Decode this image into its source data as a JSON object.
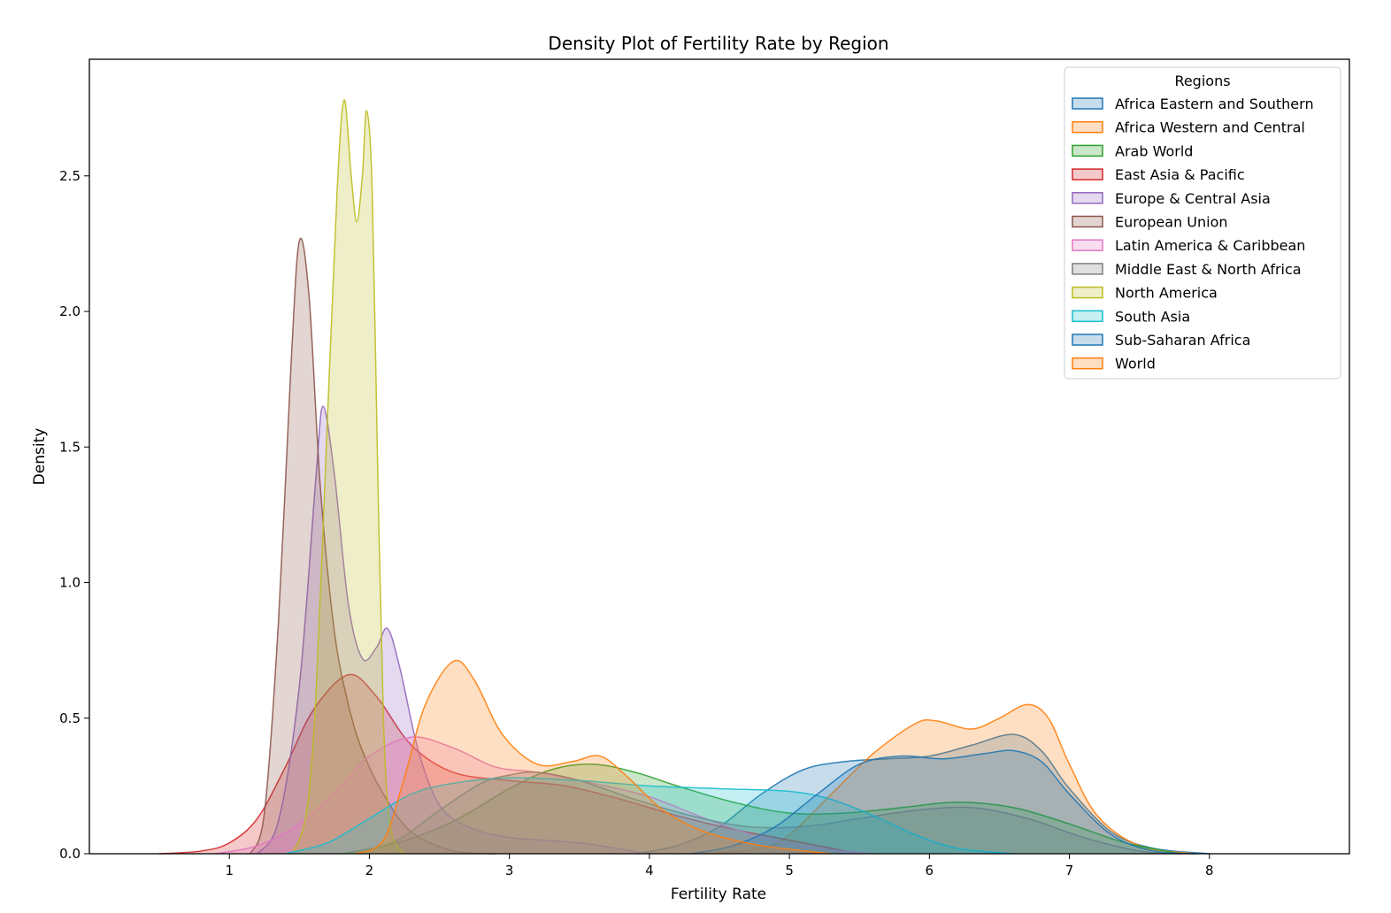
{
  "chart_data": {
    "type": "area",
    "subtype": "kde-density",
    "title": "Density Plot of Fertility Rate by Region",
    "xlabel": "Fertility Rate",
    "ylabel": "Density",
    "xlim": [
      0.0,
      9.0
    ],
    "ylim": [
      0.0,
      2.93
    ],
    "xticks": [
      1,
      2,
      3,
      4,
      5,
      6,
      7,
      8
    ],
    "yticks": [
      0.0,
      0.5,
      1.0,
      1.5,
      2.0,
      2.5
    ],
    "xtick_labels": [
      "1",
      "2",
      "3",
      "4",
      "5",
      "6",
      "7",
      "8"
    ],
    "ytick_labels": [
      "0.0",
      "0.5",
      "1.0",
      "1.5",
      "2.0",
      "2.5"
    ],
    "grid": false,
    "legend": {
      "title": "Regions",
      "position": "top-right"
    },
    "series": [
      {
        "name": "Africa Eastern and Southern",
        "color": "#1f77b4",
        "points": [
          [
            3.9,
            0
          ],
          [
            4.2,
            0.03
          ],
          [
            4.5,
            0.1
          ],
          [
            4.8,
            0.22
          ],
          [
            5.1,
            0.31
          ],
          [
            5.4,
            0.34
          ],
          [
            5.7,
            0.35
          ],
          [
            6.0,
            0.36
          ],
          [
            6.3,
            0.4
          ],
          [
            6.6,
            0.44
          ],
          [
            6.8,
            0.38
          ],
          [
            7.0,
            0.24
          ],
          [
            7.3,
            0.08
          ],
          [
            7.6,
            0.02
          ],
          [
            8.0,
            0
          ]
        ]
      },
      {
        "name": "Africa Western and Central",
        "color": "#ff7f0e",
        "points": [
          [
            4.4,
            0
          ],
          [
            4.8,
            0.02
          ],
          [
            5.0,
            0.07
          ],
          [
            5.3,
            0.22
          ],
          [
            5.6,
            0.37
          ],
          [
            5.9,
            0.48
          ],
          [
            6.05,
            0.49
          ],
          [
            6.3,
            0.46
          ],
          [
            6.5,
            0.5
          ],
          [
            6.7,
            0.55
          ],
          [
            6.85,
            0.5
          ],
          [
            7.0,
            0.33
          ],
          [
            7.2,
            0.14
          ],
          [
            7.5,
            0.03
          ],
          [
            7.9,
            0
          ]
        ]
      },
      {
        "name": "Arab World",
        "color": "#2ca02c",
        "points": [
          [
            1.8,
            0
          ],
          [
            2.2,
            0.04
          ],
          [
            2.6,
            0.12
          ],
          [
            3.0,
            0.24
          ],
          [
            3.3,
            0.31
          ],
          [
            3.6,
            0.33
          ],
          [
            3.9,
            0.3
          ],
          [
            4.2,
            0.25
          ],
          [
            4.6,
            0.19
          ],
          [
            5.0,
            0.15
          ],
          [
            5.4,
            0.15
          ],
          [
            5.8,
            0.17
          ],
          [
            6.2,
            0.19
          ],
          [
            6.6,
            0.17
          ],
          [
            7.0,
            0.11
          ],
          [
            7.4,
            0.04
          ],
          [
            7.8,
            0
          ]
        ]
      },
      {
        "name": "East Asia & Pacific",
        "color": "#d62728",
        "points": [
          [
            0.5,
            0
          ],
          [
            0.8,
            0.01
          ],
          [
            1.0,
            0.04
          ],
          [
            1.2,
            0.13
          ],
          [
            1.4,
            0.32
          ],
          [
            1.6,
            0.53
          ],
          [
            1.85,
            0.66
          ],
          [
            2.05,
            0.58
          ],
          [
            2.3,
            0.4
          ],
          [
            2.6,
            0.3
          ],
          [
            3.0,
            0.27
          ],
          [
            3.4,
            0.25
          ],
          [
            3.8,
            0.2
          ],
          [
            4.2,
            0.14
          ],
          [
            4.6,
            0.09
          ],
          [
            5.0,
            0.05
          ],
          [
            5.5,
            0
          ]
        ]
      },
      {
        "name": "Europe & Central Asia",
        "color": "#9467bd",
        "points": [
          [
            1.2,
            0
          ],
          [
            1.35,
            0.12
          ],
          [
            1.5,
            0.62
          ],
          [
            1.62,
            1.4
          ],
          [
            1.67,
            1.65
          ],
          [
            1.75,
            1.4
          ],
          [
            1.85,
            0.92
          ],
          [
            1.95,
            0.72
          ],
          [
            2.05,
            0.76
          ],
          [
            2.13,
            0.83
          ],
          [
            2.22,
            0.68
          ],
          [
            2.35,
            0.38
          ],
          [
            2.5,
            0.18
          ],
          [
            2.7,
            0.1
          ],
          [
            3.0,
            0.06
          ],
          [
            3.5,
            0.04
          ],
          [
            4.0,
            0
          ]
        ]
      },
      {
        "name": "European Union",
        "color": "#8c564b",
        "points": [
          [
            1.15,
            0
          ],
          [
            1.25,
            0.15
          ],
          [
            1.35,
            0.85
          ],
          [
            1.44,
            1.8
          ],
          [
            1.5,
            2.26
          ],
          [
            1.57,
            2.05
          ],
          [
            1.65,
            1.35
          ],
          [
            1.75,
            0.82
          ],
          [
            1.85,
            0.55
          ],
          [
            1.95,
            0.38
          ],
          [
            2.1,
            0.22
          ],
          [
            2.3,
            0.08
          ],
          [
            2.6,
            0.01
          ],
          [
            2.9,
            0
          ]
        ]
      },
      {
        "name": "Latin America & Caribbean",
        "color": "#e377c2",
        "points": [
          [
            0.9,
            0
          ],
          [
            1.2,
            0.03
          ],
          [
            1.5,
            0.11
          ],
          [
            1.8,
            0.25
          ],
          [
            2.0,
            0.36
          ],
          [
            2.3,
            0.43
          ],
          [
            2.6,
            0.39
          ],
          [
            2.9,
            0.32
          ],
          [
            3.2,
            0.3
          ],
          [
            3.6,
            0.26
          ],
          [
            4.0,
            0.21
          ],
          [
            4.4,
            0.13
          ],
          [
            4.8,
            0.06
          ],
          [
            5.2,
            0.02
          ],
          [
            5.6,
            0
          ]
        ]
      },
      {
        "name": "Middle East & North Africa",
        "color": "#7f7f7f",
        "points": [
          [
            1.9,
            0
          ],
          [
            2.2,
            0.05
          ],
          [
            2.5,
            0.16
          ],
          [
            2.8,
            0.26
          ],
          [
            3.0,
            0.29
          ],
          [
            3.2,
            0.3
          ],
          [
            3.5,
            0.27
          ],
          [
            3.9,
            0.2
          ],
          [
            4.3,
            0.14
          ],
          [
            4.7,
            0.1
          ],
          [
            5.1,
            0.1
          ],
          [
            5.5,
            0.13
          ],
          [
            5.9,
            0.16
          ],
          [
            6.3,
            0.17
          ],
          [
            6.7,
            0.13
          ],
          [
            7.1,
            0.06
          ],
          [
            7.5,
            0.01
          ],
          [
            7.8,
            0
          ]
        ]
      },
      {
        "name": "North America",
        "color": "#bcbd22",
        "points": [
          [
            1.45,
            0
          ],
          [
            1.55,
            0.15
          ],
          [
            1.62,
            0.6
          ],
          [
            1.7,
            1.6
          ],
          [
            1.77,
            2.45
          ],
          [
            1.82,
            2.78
          ],
          [
            1.87,
            2.5
          ],
          [
            1.91,
            2.33
          ],
          [
            1.95,
            2.5
          ],
          [
            1.98,
            2.74
          ],
          [
            2.02,
            2.45
          ],
          [
            2.06,
            1.4
          ],
          [
            2.1,
            0.5
          ],
          [
            2.15,
            0.1
          ],
          [
            2.25,
            0
          ]
        ]
      },
      {
        "name": "South Asia",
        "color": "#17becf",
        "points": [
          [
            1.4,
            0
          ],
          [
            1.7,
            0.04
          ],
          [
            2.0,
            0.13
          ],
          [
            2.3,
            0.22
          ],
          [
            2.6,
            0.26
          ],
          [
            3.0,
            0.28
          ],
          [
            3.5,
            0.27
          ],
          [
            4.0,
            0.25
          ],
          [
            4.5,
            0.24
          ],
          [
            5.0,
            0.23
          ],
          [
            5.3,
            0.2
          ],
          [
            5.6,
            0.14
          ],
          [
            5.9,
            0.07
          ],
          [
            6.2,
            0.02
          ],
          [
            6.6,
            0
          ]
        ]
      },
      {
        "name": "Sub-Saharan Africa",
        "color": "#1f77b4",
        "points": [
          [
            4.3,
            0
          ],
          [
            4.6,
            0.03
          ],
          [
            4.9,
            0.1
          ],
          [
            5.2,
            0.22
          ],
          [
            5.5,
            0.33
          ],
          [
            5.8,
            0.36
          ],
          [
            6.1,
            0.35
          ],
          [
            6.4,
            0.37
          ],
          [
            6.6,
            0.38
          ],
          [
            6.8,
            0.34
          ],
          [
            7.0,
            0.22
          ],
          [
            7.3,
            0.07
          ],
          [
            7.6,
            0.01
          ],
          [
            7.9,
            0
          ]
        ]
      },
      {
        "name": "World",
        "color": "#ff7f0e",
        "points": [
          [
            1.9,
            0
          ],
          [
            2.1,
            0.05
          ],
          [
            2.25,
            0.28
          ],
          [
            2.4,
            0.55
          ],
          [
            2.6,
            0.71
          ],
          [
            2.75,
            0.64
          ],
          [
            2.95,
            0.44
          ],
          [
            3.2,
            0.33
          ],
          [
            3.45,
            0.34
          ],
          [
            3.65,
            0.36
          ],
          [
            3.85,
            0.28
          ],
          [
            4.1,
            0.16
          ],
          [
            4.4,
            0.08
          ],
          [
            4.8,
            0.03
          ],
          [
            5.3,
            0
          ]
        ]
      }
    ]
  }
}
